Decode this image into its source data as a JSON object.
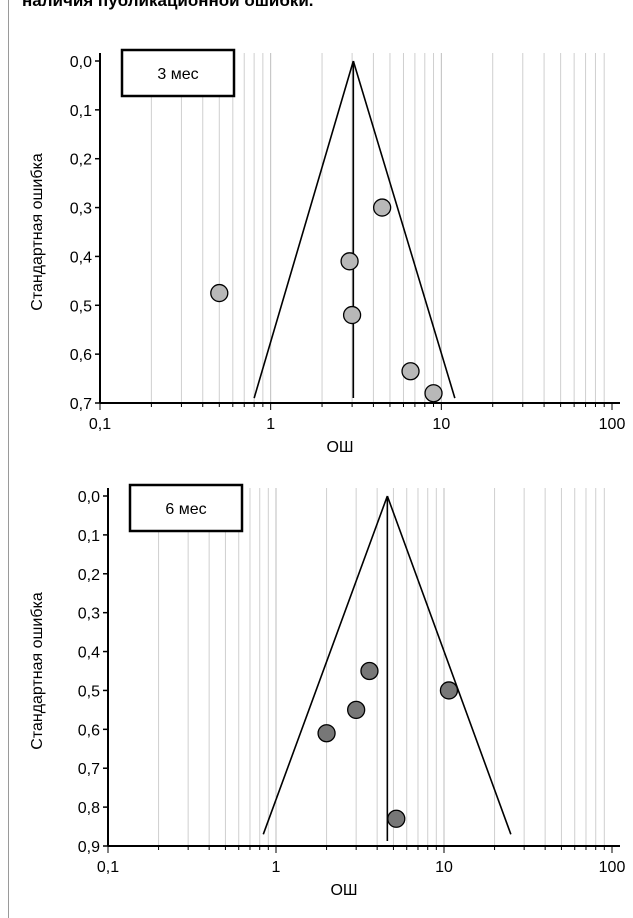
{
  "caption": "наличия публикационной ошибки.",
  "chart_data": [
    {
      "type": "scatter",
      "subtype": "funnel",
      "panel_label": "3 мес",
      "xlabel": "ОШ",
      "ylabel": "Стандартная ошибка",
      "xscale": "log",
      "xlim": [
        0.1,
        100
      ],
      "ylim": [
        0.0,
        0.7
      ],
      "x_tick_labels": [
        "0,1",
        "1",
        "10",
        "100"
      ],
      "y_tick_labels": [
        "0,0",
        "0,1",
        "0,2",
        "0,3",
        "0,4",
        "0,5",
        "0,6",
        "0,7"
      ],
      "grid": "vertical",
      "pooled_estimate": 3.05,
      "funnel": {
        "apex_y": 0.0,
        "base_y": 0.69,
        "base_left_x": 0.8,
        "base_right_x": 12.0
      },
      "marker_color": "#b8b8b8",
      "points": [
        {
          "x": 4.5,
          "y": 0.3
        },
        {
          "x": 2.9,
          "y": 0.41
        },
        {
          "x": 0.5,
          "y": 0.475
        },
        {
          "x": 3.0,
          "y": 0.52
        },
        {
          "x": 6.6,
          "y": 0.635
        },
        {
          "x": 9.0,
          "y": 0.68
        }
      ]
    },
    {
      "type": "scatter",
      "subtype": "funnel",
      "panel_label": "6 мес",
      "xlabel": "ОШ",
      "ylabel": "Стандартная ошибка",
      "xscale": "log",
      "xlim": [
        0.1,
        100
      ],
      "ylim": [
        0.0,
        0.9
      ],
      "x_tick_labels": [
        "0,1",
        "1",
        "10",
        "100"
      ],
      "y_tick_labels": [
        "0,0",
        "0,1",
        "0,2",
        "0,3",
        "0,4",
        "0,5",
        "0,6",
        "0,7",
        "0,8",
        "0,9"
      ],
      "grid": "vertical",
      "pooled_estimate": 4.6,
      "funnel": {
        "apex_y": 0.0,
        "base_y": 0.87,
        "base_left_x": 0.84,
        "base_right_x": 25.0
      },
      "marker_color": "#777777",
      "points": [
        {
          "x": 3.6,
          "y": 0.45
        },
        {
          "x": 10.7,
          "y": 0.5
        },
        {
          "x": 3.0,
          "y": 0.55
        },
        {
          "x": 2.0,
          "y": 0.61
        },
        {
          "x": 5.2,
          "y": 0.83
        }
      ]
    }
  ]
}
